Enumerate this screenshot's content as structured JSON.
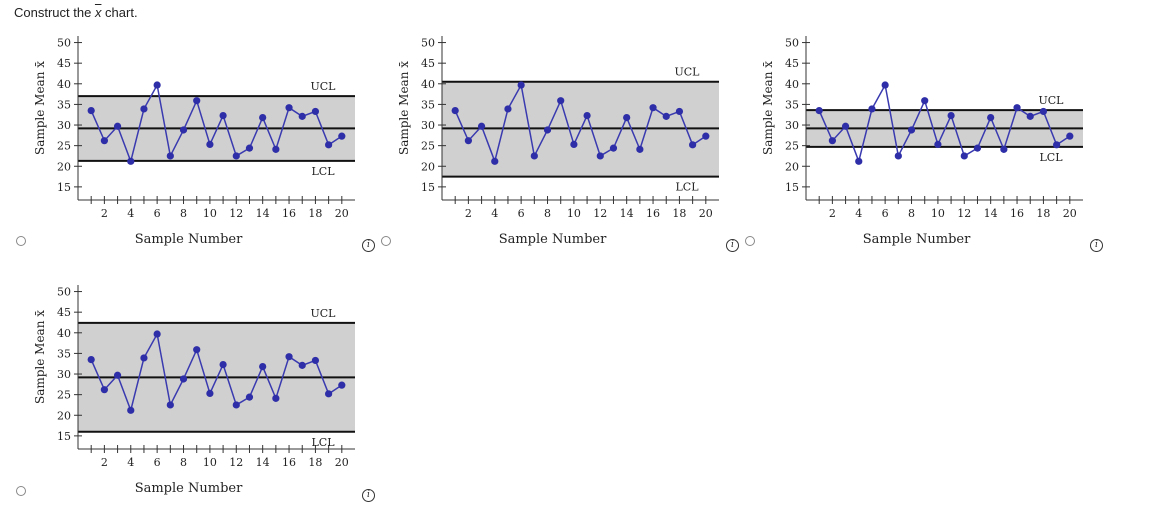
{
  "question": {
    "prefix": "Construct the ",
    "symbol": "x",
    "suffix": " chart."
  },
  "info_label": "i",
  "chart_data": [
    {
      "type": "line",
      "option": "A",
      "x": [
        1,
        2,
        3,
        4,
        5,
        6,
        7,
        8,
        9,
        10,
        11,
        12,
        13,
        14,
        15,
        16,
        17,
        18,
        19,
        20
      ],
      "values": [
        33.5,
        26.2,
        29.7,
        21.2,
        33.9,
        39.7,
        22.5,
        28.8,
        35.9,
        25.3,
        32.3,
        22.5,
        24.4,
        31.8,
        24.1,
        34.2,
        32.1,
        33.3,
        25.2,
        27.3
      ],
      "ucl": 37.0,
      "center": 29.2,
      "lcl": 21.3,
      "ucl_label": "UCL",
      "lcl_label": "LCL",
      "xlabel": "Sample Number",
      "ylabel": "Sample Mean x̄",
      "yticks": [
        15,
        20,
        25,
        30,
        35,
        40,
        45,
        50
      ],
      "xticks": [
        2,
        4,
        6,
        8,
        10,
        12,
        14,
        16,
        18,
        20
      ],
      "xlim": [
        0,
        21
      ],
      "ylim": [
        15,
        50
      ]
    },
    {
      "type": "line",
      "option": "B",
      "x": [
        1,
        2,
        3,
        4,
        5,
        6,
        7,
        8,
        9,
        10,
        11,
        12,
        13,
        14,
        15,
        16,
        17,
        18,
        19,
        20
      ],
      "values": [
        33.5,
        26.2,
        29.7,
        21.2,
        33.9,
        39.7,
        22.5,
        28.8,
        35.9,
        25.3,
        32.3,
        22.5,
        24.4,
        31.8,
        24.1,
        34.2,
        32.1,
        33.3,
        25.2,
        27.3
      ],
      "ucl": 40.5,
      "center": 29.2,
      "lcl": 17.5,
      "ucl_label": "UCL",
      "lcl_label": "LCL",
      "xlabel": "Sample Number",
      "ylabel": "Sample Mean x̄",
      "yticks": [
        15,
        20,
        25,
        30,
        35,
        40,
        45,
        50
      ],
      "xticks": [
        2,
        4,
        6,
        8,
        10,
        12,
        14,
        16,
        18,
        20
      ],
      "xlim": [
        0,
        21
      ],
      "ylim": [
        15,
        50
      ]
    },
    {
      "type": "line",
      "option": "C",
      "x": [
        1,
        2,
        3,
        4,
        5,
        6,
        7,
        8,
        9,
        10,
        11,
        12,
        13,
        14,
        15,
        16,
        17,
        18,
        19,
        20
      ],
      "values": [
        33.5,
        26.2,
        29.7,
        21.2,
        33.9,
        39.7,
        22.5,
        28.8,
        35.9,
        25.3,
        32.3,
        22.5,
        24.4,
        31.8,
        24.1,
        34.2,
        32.1,
        33.3,
        25.2,
        27.3
      ],
      "ucl": 33.6,
      "center": 29.2,
      "lcl": 24.7,
      "ucl_label": "UCL",
      "lcl_label": "LCL",
      "xlabel": "Sample Number",
      "ylabel": "Sample Mean x̄",
      "yticks": [
        15,
        20,
        25,
        30,
        35,
        40,
        45,
        50
      ],
      "xticks": [
        2,
        4,
        6,
        8,
        10,
        12,
        14,
        16,
        18,
        20
      ],
      "xlim": [
        0,
        21
      ],
      "ylim": [
        15,
        50
      ]
    },
    {
      "type": "line",
      "option": "D",
      "x": [
        1,
        2,
        3,
        4,
        5,
        6,
        7,
        8,
        9,
        10,
        11,
        12,
        13,
        14,
        15,
        16,
        17,
        18,
        19,
        20
      ],
      "values": [
        33.5,
        26.2,
        29.7,
        21.2,
        33.9,
        39.7,
        22.5,
        28.8,
        35.9,
        25.3,
        32.3,
        22.5,
        24.4,
        31.8,
        24.1,
        34.2,
        32.1,
        33.3,
        25.2,
        27.3
      ],
      "ucl": 42.4,
      "center": 29.2,
      "lcl": 16.0,
      "ucl_label": "UCL",
      "lcl_label": "LCL",
      "xlabel": "Sample Number",
      "ylabel": "Sample Mean x̄",
      "yticks": [
        15,
        20,
        25,
        30,
        35,
        40,
        45,
        50
      ],
      "xticks": [
        2,
        4,
        6,
        8,
        10,
        12,
        14,
        16,
        18,
        20
      ],
      "xlim": [
        0,
        21
      ],
      "ylim": [
        15,
        50
      ]
    }
  ]
}
